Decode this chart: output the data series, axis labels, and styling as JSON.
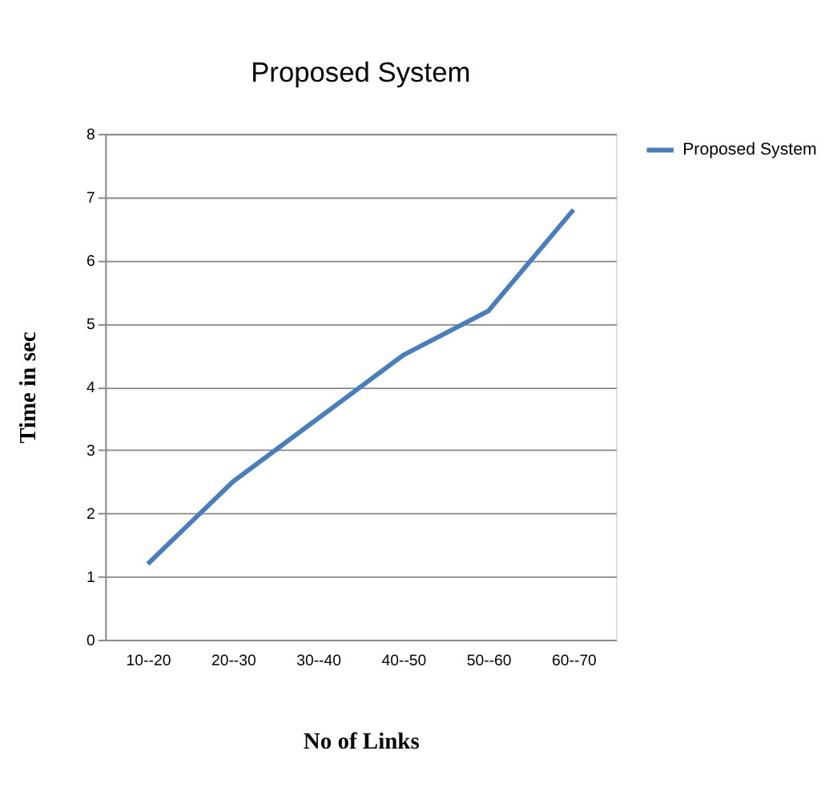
{
  "chart_data": {
    "type": "line",
    "title": "Proposed System",
    "xlabel": "No of Links",
    "ylabel": "Time in sec",
    "categories": [
      "10--20",
      "20--30",
      "30--40",
      "40--50",
      "50--60",
      "60--70"
    ],
    "series": [
      {
        "name": "Proposed System",
        "color": "#4a7ebb",
        "values": [
          1.2,
          2.5,
          3.5,
          4.5,
          5.2,
          6.8
        ]
      }
    ],
    "ylim": [
      0,
      8
    ],
    "yticks": [
      0,
      1,
      2,
      3,
      4,
      5,
      6,
      7,
      8
    ],
    "grid": "y",
    "legend": "right",
    "marker": "none",
    "line_style": "solid"
  }
}
